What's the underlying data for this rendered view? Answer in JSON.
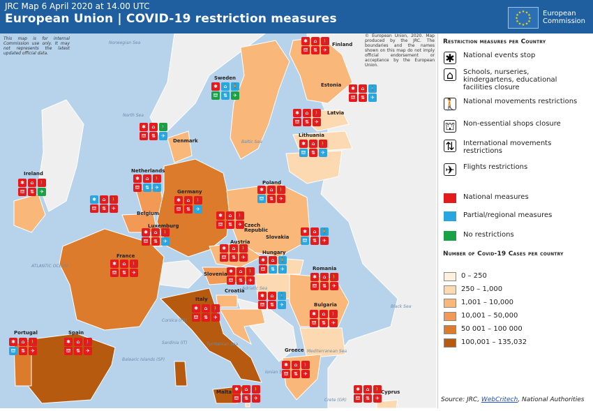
{
  "header": {
    "subtitle": "JRC Map 6 April 2020 at 14.00 UTC",
    "title": "European Union | COVID-19 restriction measures",
    "logo_text": "European\nCommission"
  },
  "disclaimer_left": "This map is for internal Commission use only. It may not represents the latest updated official data.",
  "disclaimer_right": "© European Union, 2020. Map produced by the JRC. The boundaries and the names shown on this map do not imply official endorsement or acceptance by the European Union.",
  "legend": {
    "measures_title": "Restriction measures per Country",
    "measures": [
      {
        "icon": "events-icon",
        "glyph": "✱",
        "label": "National events stop"
      },
      {
        "icon": "school-icon",
        "glyph": "⌂",
        "label": "Schools, nurseries, kindergartens, educational facilities closure"
      },
      {
        "icon": "walking-icon",
        "glyph": "🚶",
        "label": "National movements restrictions"
      },
      {
        "icon": "shop-icon",
        "glyph": "⛫",
        "label": "Non-essential shops closure"
      },
      {
        "icon": "updown-arrows-icon",
        "glyph": "⇅",
        "label": "International movements restrictions"
      },
      {
        "icon": "airplane-icon",
        "glyph": "✈",
        "label": "Flights restrictions"
      }
    ],
    "status": [
      {
        "color": "#e41a1c",
        "label": "National measures"
      },
      {
        "color": "#29a6e0",
        "label": "Partial/regional measures"
      },
      {
        "color": "#19a245",
        "label": "No restrictions"
      }
    ],
    "cases_title": "Number of Covid-19 Cases per country",
    "cases": [
      {
        "color": "#fdf0dc",
        "label": "0 – 250"
      },
      {
        "color": "#fcd9b0",
        "label": "250 – 1,000"
      },
      {
        "color": "#f9b77a",
        "label": "1,001 – 10,000"
      },
      {
        "color": "#f29a55",
        "label": "10,001 – 50,000"
      },
      {
        "color": "#db7b2b",
        "label": "50 001 – 100 000"
      },
      {
        "color": "#b65a0f",
        "label": "100,001 – 135,032"
      }
    ]
  },
  "source": {
    "prefix": "Source: JRC, ",
    "link": "WebCritech",
    "suffix": ", National Authorities"
  },
  "colors": {
    "sea": "#b7d3ec",
    "non_eu": "#efefef",
    "border": "#ffffff"
  },
  "countries": [
    {
      "name": "Finland",
      "icons": "rrr rrr"
    },
    {
      "name": "Sweden",
      "icons": "rbb gbg"
    },
    {
      "name": "Estonia",
      "icons": "rrb rrb"
    },
    {
      "name": "Latvia",
      "icons": "rrr rrr"
    },
    {
      "name": "Lithuania",
      "icons": "rrr brb"
    },
    {
      "name": "Denmark",
      "icons": "rrg rrb"
    },
    {
      "name": "Ireland",
      "icons": "rrr rrg"
    },
    {
      "name": "Netherlands",
      "icons": "rrr rbb"
    },
    {
      "name": "Belgium",
      "icons": "brr rrr"
    },
    {
      "name": "Germany",
      "icons": "rrr rrb"
    },
    {
      "name": "Luxemburg",
      "icons": "rrr rrb"
    },
    {
      "name": "Poland",
      "icons": "rrr brr"
    },
    {
      "name": "Czech Republic",
      "icons": "rrr rrr"
    },
    {
      "name": "Slovakia",
      "icons": "rrb brr"
    },
    {
      "name": "Austria",
      "icons": "rrr rrr"
    },
    {
      "name": "Hungary",
      "icons": "rrb rbb"
    },
    {
      "name": "France",
      "icons": "rrr rrr"
    },
    {
      "name": "Slovenia",
      "icons": "rrr rrr"
    },
    {
      "name": "Croatia",
      "icons": "rrb rrb"
    },
    {
      "name": "Romania",
      "icons": "rrr rrr"
    },
    {
      "name": "Bulgaria",
      "icons": "rrr rrr"
    },
    {
      "name": "Italy",
      "icons": "rrr rrr"
    },
    {
      "name": "Portugal",
      "icons": "rrr brr"
    },
    {
      "name": "Spain",
      "icons": "rrr rrr"
    },
    {
      "name": "Greece",
      "icons": "rrr rrr"
    },
    {
      "name": "Malta",
      "icons": "rrr rrr"
    },
    {
      "name": "Cyprus",
      "icons": "rrr rrr"
    }
  ],
  "seas": [
    "Norwegian Sea",
    "North Sea",
    "Baltic Sea",
    "ATLANTIC OCEAN",
    "Black Sea",
    "Tyrrhenian Sea",
    "Ionian Sea",
    "Adriatic Sea",
    "Balearic Islands (SP)",
    "Corsica (FR)",
    "Sardinia (IT)",
    "Mediterranean Sea",
    "Crete (GR)"
  ]
}
